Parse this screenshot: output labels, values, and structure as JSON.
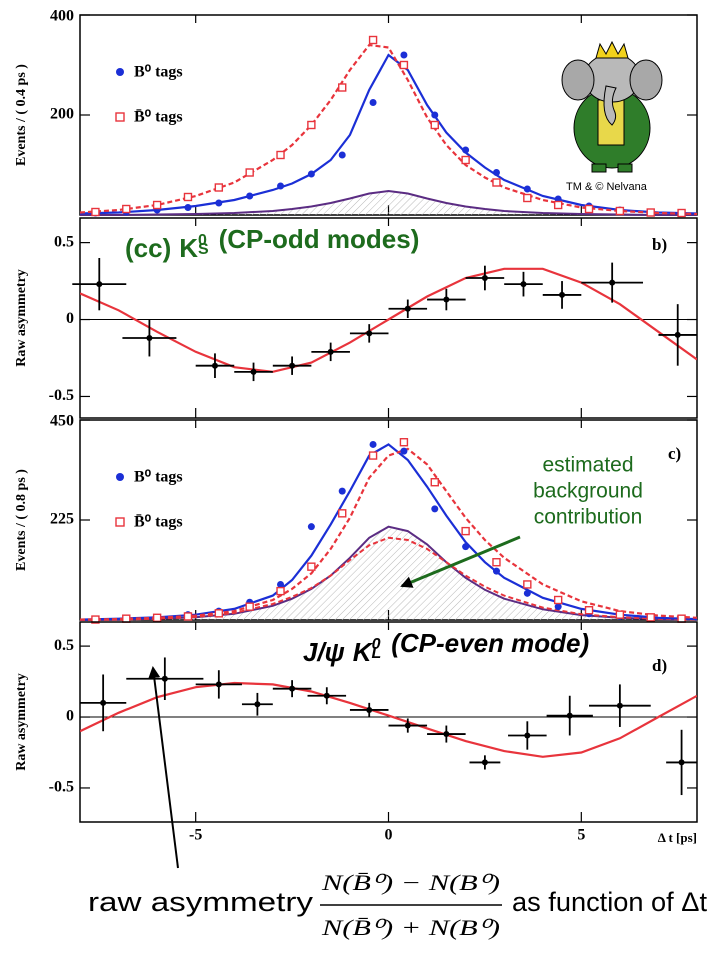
{
  "chart_data": [
    {
      "type": "scatter",
      "ylabel": "Events / ( 0.4 ps )",
      "xlim": [
        -8,
        8
      ],
      "ylim": [
        0,
        400
      ],
      "yticks": [
        200,
        400
      ],
      "legend": "upper left",
      "series": [
        {
          "name": "B⁰  tags",
          "color": "#1b2fd6",
          "marker": "dot",
          "x": [
            -7.6,
            -6.8,
            -6.0,
            -5.2,
            -4.4,
            -3.6,
            -2.8,
            -2.0,
            -1.2,
            -0.4,
            0.4,
            1.2,
            2.0,
            2.8,
            3.6,
            4.4,
            5.2,
            6.0,
            6.8,
            7.6
          ],
          "values": [
            4,
            6,
            10,
            15,
            24,
            38,
            58,
            82,
            120,
            225,
            320,
            200,
            130,
            85,
            52,
            32,
            18,
            10,
            6,
            4
          ]
        },
        {
          "name": "B̄⁰  tags",
          "color": "#e8343c",
          "marker": "open-square",
          "x": [
            -7.6,
            -6.8,
            -6.0,
            -5.2,
            -4.4,
            -3.6,
            -2.8,
            -2.0,
            -1.2,
            -0.4,
            0.4,
            1.2,
            2.0,
            2.8,
            3.6,
            4.4,
            5.2,
            6.0,
            6.8,
            7.6
          ],
          "values": [
            6,
            12,
            20,
            36,
            55,
            85,
            120,
            180,
            255,
            350,
            300,
            180,
            110,
            65,
            34,
            20,
            12,
            8,
            5,
            4
          ]
        }
      ],
      "fits": [
        {
          "color": "#1b2fd6",
          "dash": false,
          "x": [
            -8,
            -7,
            -6,
            -5,
            -4,
            -3,
            -2.5,
            -2,
            -1.5,
            -1,
            -0.5,
            0,
            0.5,
            1,
            1.5,
            2,
            2.5,
            3,
            4,
            5,
            6,
            7,
            8
          ],
          "values": [
            3,
            5,
            10,
            18,
            30,
            50,
            63,
            82,
            110,
            160,
            250,
            320,
            290,
            220,
            165,
            125,
            95,
            70,
            38,
            20,
            10,
            5,
            3
          ]
        },
        {
          "color": "#e8343c",
          "dash": true,
          "x": [
            -8,
            -7,
            -6,
            -5,
            -4,
            -3,
            -2.5,
            -2,
            -1.5,
            -1,
            -0.5,
            0,
            0.5,
            1,
            1.5,
            2,
            2.5,
            3,
            4,
            5,
            6,
            7,
            8
          ],
          "values": [
            5,
            10,
            20,
            38,
            65,
            110,
            140,
            180,
            230,
            290,
            340,
            335,
            270,
            195,
            140,
            100,
            75,
            55,
            30,
            15,
            8,
            4,
            2
          ]
        }
      ],
      "background": [
        {
          "color": "#5b2c83",
          "dash": false,
          "x": [
            -8,
            -7,
            -6,
            -5,
            -4,
            -3,
            -2.5,
            -2,
            -1.5,
            -1,
            -0.5,
            0,
            0.5,
            1,
            1.5,
            2,
            2.5,
            3,
            4,
            5,
            6,
            7,
            8
          ],
          "values": [
            0,
            0,
            1,
            2,
            4,
            8,
            12,
            17,
            24,
            33,
            43,
            48,
            43,
            33,
            24,
            17,
            12,
            8,
            4,
            2,
            1,
            0,
            0
          ]
        }
      ]
    },
    {
      "type": "errorbar",
      "ylabel": "Raw asymmetry",
      "panel_letter": "b)",
      "label_parts": [
        "(cc)",
        "K",
        "0",
        "S",
        "(CP-odd modes)"
      ],
      "label_color": "#1d6b1d",
      "xlim": [
        -8,
        8
      ],
      "ylim": [
        -0.64,
        0.66
      ],
      "yticks": [
        0.5,
        0,
        -0.5
      ],
      "zero_line": true,
      "color": "#000000",
      "x": [
        -7.5,
        -6.2,
        -4.5,
        -3.5,
        -2.5,
        -1.5,
        -0.5,
        0.5,
        1.5,
        2.5,
        3.5,
        4.5,
        5.8,
        7.5
      ],
      "values": [
        0.23,
        -0.12,
        -0.3,
        -0.34,
        -0.3,
        -0.21,
        -0.09,
        0.07,
        0.13,
        0.27,
        0.23,
        0.16,
        0.24,
        -0.1
      ],
      "x_errors": [
        0.7,
        0.7,
        0.5,
        0.5,
        0.5,
        0.5,
        0.5,
        0.5,
        0.5,
        0.5,
        0.5,
        0.5,
        0.8,
        0.5
      ],
      "errors": [
        0.17,
        0.12,
        0.08,
        0.06,
        0.06,
        0.06,
        0.06,
        0.06,
        0.07,
        0.08,
        0.08,
        0.09,
        0.13,
        0.2
      ],
      "fit": {
        "color": "#e8343c",
        "x": [
          -8,
          -7,
          -6,
          -5,
          -4,
          -3,
          -2,
          -1,
          0,
          1,
          2,
          3,
          4,
          5,
          6,
          7,
          8
        ],
        "values": [
          0.17,
          0.06,
          -0.08,
          -0.21,
          -0.31,
          -0.34,
          -0.28,
          -0.15,
          0,
          0.15,
          0.27,
          0.33,
          0.33,
          0.24,
          0.1,
          -0.08,
          -0.26
        ]
      }
    },
    {
      "type": "scatter",
      "ylabel": "Events / ( 0.8 ps )",
      "panel_letter": "c)",
      "xlim": [
        -8,
        8
      ],
      "ylim": [
        0,
        450
      ],
      "yticks": [
        225,
        450
      ],
      "legend": "upper left",
      "annotation": [
        "estimated",
        "background",
        "contribution"
      ],
      "annotation_color": "#1d6b1d",
      "series": [
        {
          "name": "B⁰  tags",
          "color": "#1b2fd6",
          "marker": "dot",
          "x": [
            -7.6,
            -6.8,
            -6.0,
            -5.2,
            -4.4,
            -3.6,
            -2.8,
            -2.0,
            -1.2,
            -0.4,
            0.4,
            1.2,
            2.0,
            2.8,
            3.6,
            4.4,
            5.2,
            6.0,
            6.8,
            7.6
          ],
          "values": [
            2,
            4,
            6,
            12,
            20,
            40,
            80,
            210,
            290,
            395,
            380,
            250,
            165,
            110,
            60,
            30,
            14,
            8,
            4,
            2
          ]
        },
        {
          "name": "B̄⁰  tags",
          "color": "#e8343c",
          "marker": "open-square",
          "x": [
            -7.6,
            -6.8,
            -6.0,
            -5.2,
            -4.4,
            -3.6,
            -2.8,
            -2.0,
            -1.2,
            -0.4,
            0.4,
            1.2,
            2.0,
            2.8,
            3.6,
            4.4,
            5.2,
            6.0,
            6.8,
            7.6
          ],
          "values": [
            1,
            3,
            5,
            8,
            15,
            30,
            65,
            120,
            240,
            370,
            400,
            310,
            200,
            130,
            80,
            45,
            22,
            12,
            6,
            3
          ]
        }
      ],
      "fits": [
        {
          "color": "#1b2fd6",
          "dash": false,
          "x": [
            -8,
            -7,
            -6,
            -5,
            -4,
            -3,
            -2.5,
            -2,
            -1.5,
            -1,
            -0.5,
            0,
            0.5,
            1,
            1.5,
            2,
            2.5,
            3,
            4,
            5,
            6,
            7,
            8
          ],
          "values": [
            1,
            3,
            6,
            12,
            25,
            55,
            90,
            145,
            215,
            290,
            370,
            395,
            360,
            300,
            235,
            175,
            130,
            95,
            50,
            25,
            12,
            5,
            2
          ]
        },
        {
          "color": "#e8343c",
          "dash": true,
          "x": [
            -8,
            -7,
            -6,
            -5,
            -4,
            -3,
            -2.5,
            -2,
            -1.5,
            -1,
            -0.5,
            0,
            0.5,
            1,
            1.5,
            2,
            2.5,
            3,
            4,
            5,
            6,
            7,
            8
          ],
          "values": [
            1,
            2,
            5,
            10,
            20,
            45,
            70,
            105,
            160,
            230,
            320,
            370,
            385,
            350,
            290,
            230,
            180,
            140,
            80,
            42,
            20,
            10,
            5
          ]
        }
      ],
      "background": [
        {
          "color": "#5b2c83",
          "dash": false,
          "x": [
            -8,
            -7,
            -6,
            -5,
            -4,
            -3,
            -2.5,
            -2,
            -1.5,
            -1,
            -0.5,
            0,
            0.5,
            1,
            1.5,
            2,
            2.5,
            3,
            4,
            5,
            6,
            7,
            8
          ],
          "values": [
            0,
            1,
            3,
            6,
            14,
            32,
            48,
            70,
            100,
            140,
            185,
            210,
            200,
            170,
            130,
            95,
            68,
            48,
            24,
            11,
            5,
            2,
            1
          ]
        },
        {
          "color": "#e8343c",
          "dash": true,
          "x": [
            -8,
            -7,
            -6,
            -5,
            -4,
            -3,
            -2.5,
            -2,
            -1.5,
            -1,
            -0.5,
            0,
            0.5,
            1,
            1.5,
            2,
            2.5,
            3,
            4,
            5,
            6,
            7,
            8
          ],
          "values": [
            0,
            1,
            3,
            7,
            16,
            36,
            52,
            72,
            100,
            135,
            168,
            185,
            180,
            160,
            130,
            100,
            75,
            55,
            28,
            13,
            6,
            3,
            1
          ]
        }
      ]
    },
    {
      "type": "errorbar",
      "ylabel": "Raw asymmetry",
      "panel_letter": "d)",
      "label_parts": [
        "J/ψ",
        "K",
        "0",
        "L",
        "(CP-even mode)"
      ],
      "label_color": "#000000",
      "xlabel": "Δ t [ps]",
      "xlim": [
        -8,
        8
      ],
      "xticks": [
        -5,
        0,
        5
      ],
      "ylim": [
        -0.74,
        0.67
      ],
      "yticks": [
        0.5,
        0,
        -0.5
      ],
      "zero_line": true,
      "color": "#000000",
      "x": [
        -7.4,
        -5.8,
        -4.4,
        -3.4,
        -2.5,
        -1.6,
        -0.5,
        0.5,
        1.5,
        2.5,
        3.6,
        4.7,
        6,
        7.6
      ],
      "values": [
        0.1,
        0.27,
        0.23,
        0.09,
        0.2,
        0.15,
        0.05,
        -0.06,
        -0.12,
        -0.32,
        -0.13,
        0.01,
        0.08,
        -0.32
      ],
      "x_errors": [
        0.6,
        1,
        0.6,
        0.4,
        0.5,
        0.5,
        0.5,
        0.5,
        0.5,
        0.4,
        0.5,
        0.6,
        0.8,
        0.4
      ],
      "errors": [
        0.2,
        0.15,
        0.1,
        0.08,
        0.06,
        0.06,
        0.05,
        0.05,
        0.06,
        0.05,
        0.1,
        0.14,
        0.15,
        0.23
      ],
      "fit": {
        "color": "#e8343c",
        "x": [
          -8,
          -7,
          -6,
          -5,
          -4,
          -3,
          -2,
          -1,
          0,
          1,
          2,
          3,
          4,
          5,
          6,
          7,
          8
        ],
        "values": [
          -0.1,
          0.03,
          0.14,
          0.21,
          0.24,
          0.23,
          0.18,
          0.1,
          0.01,
          -0.08,
          -0.17,
          -0.24,
          -0.28,
          -0.25,
          -0.15,
          0,
          0.15
        ]
      }
    }
  ],
  "credit": "TM & © Nelvana",
  "caption": {
    "prefix": "raw asymmetry",
    "numerator": "N(B̄⁰) − N(B⁰)",
    "denominator": "N(B̄⁰) + N(B⁰)",
    "suffix": "as function of Δt"
  }
}
